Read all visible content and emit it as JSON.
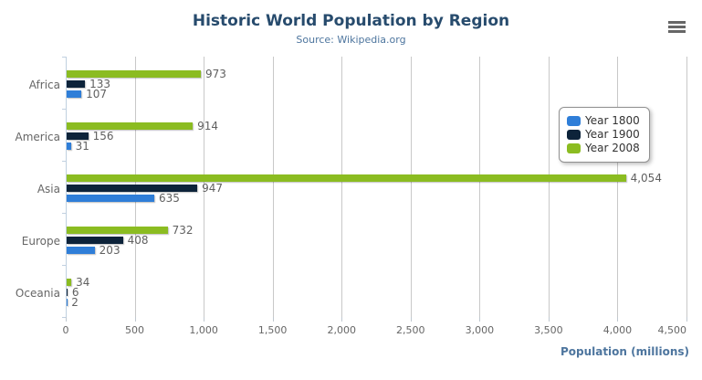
{
  "chart_data": {
    "type": "bar",
    "orientation": "horizontal",
    "title": "Historic World Population by Region",
    "subtitle": "Source: Wikipedia.org",
    "xlabel": "Population (millions)",
    "categories": [
      "Africa",
      "America",
      "Asia",
      "Europe",
      "Oceania"
    ],
    "series": [
      {
        "name": "Year 1800",
        "color": "#2f7ed8",
        "values": [
          107,
          31,
          635,
          203,
          2
        ],
        "labels": [
          "107",
          "31",
          "635",
          "203",
          "2"
        ]
      },
      {
        "name": "Year 1900",
        "color": "#0d233a",
        "values": [
          133,
          156,
          947,
          408,
          6
        ],
        "labels": [
          "133",
          "156",
          "947",
          "408",
          "6"
        ]
      },
      {
        "name": "Year 2008",
        "color": "#8bbc21",
        "values": [
          973,
          914,
          4054,
          732,
          34
        ],
        "labels": [
          "973",
          "914",
          "4,054",
          "732",
          "34"
        ]
      }
    ],
    "bar_order_top_to_bottom": [
      "Year 2008",
      "Year 1900",
      "Year 1800"
    ],
    "xlim": [
      0,
      4500
    ],
    "xticks": [
      0,
      500,
      1000,
      1500,
      2000,
      2500,
      3000,
      3500,
      4000,
      4500
    ],
    "xtick_labels": [
      "0",
      "500",
      "1,000",
      "1,500",
      "2,000",
      "2,500",
      "3,000",
      "3,500",
      "4,000",
      "4,500"
    ],
    "grid": true,
    "legend_position": "right-inside"
  },
  "legend": {
    "items": [
      {
        "label": "Year 1800",
        "color": "#2f7ed8"
      },
      {
        "label": "Year 1900",
        "color": "#0d233a"
      },
      {
        "label": "Year 2008",
        "color": "#8bbc21"
      }
    ]
  },
  "toolbar": {
    "menu_icon": "hamburger-icon"
  },
  "style_colors": {
    "title": "#274b6d",
    "subtitle": "#4d759e",
    "axis_title": "#4d759e",
    "axis_labels": "#666666",
    "data_labels": "#606060",
    "grid_line": "#c8c8c8",
    "axis_line": "#c0d0e0",
    "legend_border": "#909090",
    "legend_text": "#333333",
    "menu_icon": "#666666"
  }
}
